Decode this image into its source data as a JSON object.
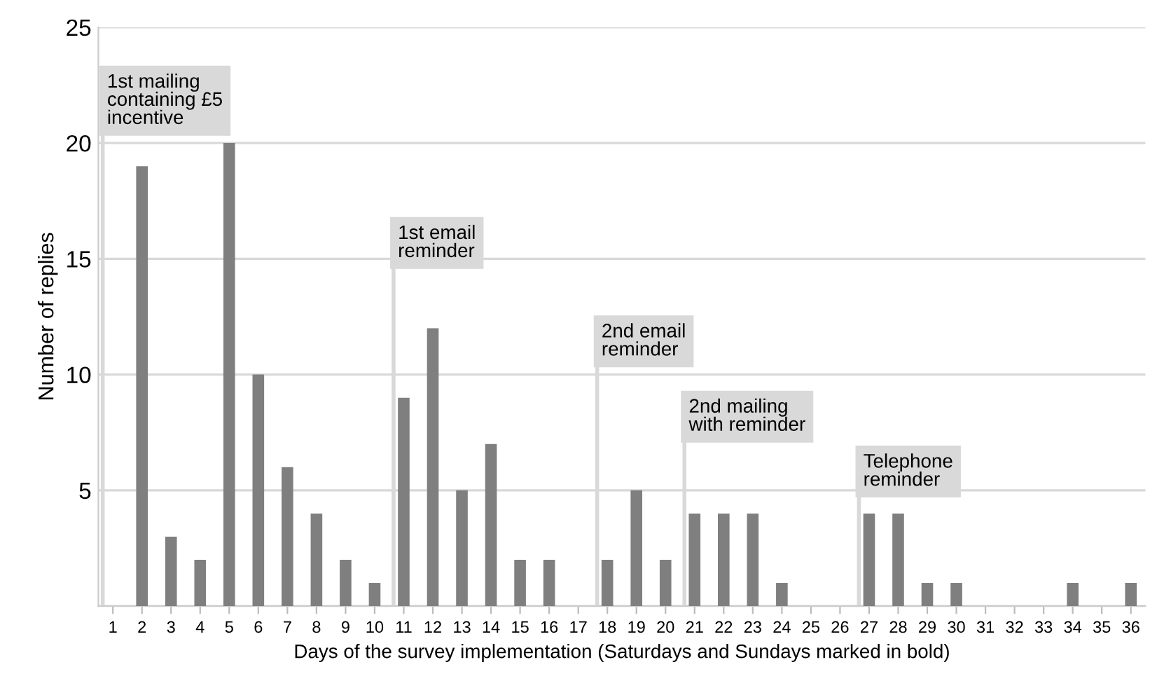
{
  "chart_data": {
    "type": "bar",
    "xlabel": "Days of the survey implementation (Saturdays and Sundays marked in bold)",
    "ylabel": "Number of replies",
    "categories": [
      "1",
      "2",
      "3",
      "4",
      "5",
      "6",
      "7",
      "8",
      "9",
      "10",
      "11",
      "12",
      "13",
      "14",
      "15",
      "16",
      "17",
      "18",
      "19",
      "20",
      "21",
      "22",
      "23",
      "24",
      "25",
      "26",
      "27",
      "28",
      "29",
      "30",
      "31",
      "32",
      "33",
      "34",
      "35",
      "36"
    ],
    "values": [
      0,
      19,
      3,
      2,
      20,
      10,
      6,
      4,
      2,
      1,
      9,
      12,
      5,
      7,
      2,
      2,
      0,
      2,
      5,
      2,
      4,
      4,
      4,
      1,
      0,
      0,
      4,
      4,
      1,
      1,
      0,
      0,
      0,
      1,
      0,
      1
    ],
    "color": "#7f7f7f",
    "ylim": [
      0,
      25
    ],
    "yticks": [
      {
        "value": 0,
        "label": null
      },
      5,
      10,
      15,
      20,
      25
    ],
    "grid": "y",
    "ref_lines": [
      {
        "axis": "x",
        "value": "1",
        "label": "1st mailing\ncontaining £5\nincentive",
        "color": "#d9d9d9"
      },
      {
        "axis": "x",
        "value": "11",
        "label": "1st email\nreminder",
        "color": "#d9d9d9"
      },
      {
        "axis": "x",
        "value": "18",
        "label": "2nd email\nreminder",
        "color": "#d9d9d9"
      },
      {
        "axis": "x",
        "value": "21",
        "label": "2nd mailing\nwith reminder",
        "color": "#d9d9d9"
      },
      {
        "axis": "x",
        "value": "27",
        "label": "Telephone\nreminder",
        "color": "#d9d9d9"
      }
    ]
  }
}
